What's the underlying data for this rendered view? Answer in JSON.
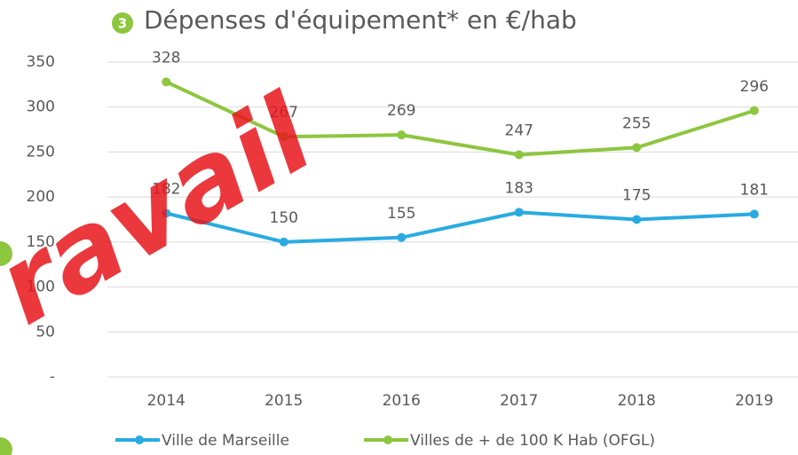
{
  "chart_data": {
    "type": "line",
    "badge": "3",
    "title": "Dépenses d'équipement*  en €/hab",
    "watermark": "ravail",
    "categories": [
      "2014",
      "2015",
      "2016",
      "2017",
      "2018",
      "2019"
    ],
    "series": [
      {
        "name": "Ville de Marseille",
        "color": "#29abe2",
        "values": [
          182,
          150,
          155,
          183,
          175,
          181
        ]
      },
      {
        "name": "Villes de + de 100 K Hab (OFGL)",
        "color": "#8dc63f",
        "values": [
          328,
          267,
          269,
          247,
          255,
          296
        ]
      }
    ],
    "ylim": [
      0,
      350
    ],
    "yticks": [
      {
        "value": 0,
        "label": "-"
      },
      50,
      100,
      150,
      200,
      250,
      300,
      350
    ],
    "grid": true,
    "legend": "bottom"
  }
}
